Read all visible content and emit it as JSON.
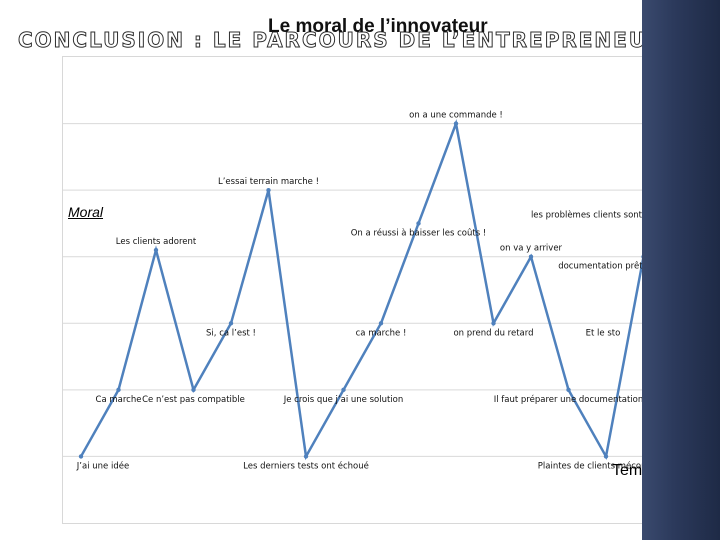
{
  "slide": {
    "title": "CONCLUSION : LE PARCOURS DE L’ENTREPRENEUR"
  },
  "chart_data": {
    "type": "line",
    "title": "Le moral de l’innovateur",
    "xlabel": "Temps",
    "ylabel": "Moral",
    "grid": true,
    "ylim": [
      0,
      7
    ],
    "line_color": "#4f81bd",
    "points": [
      {
        "label": "J’ai une idée",
        "y": 1.0
      },
      {
        "label": "Ca marche",
        "y": 2.0
      },
      {
        "label": "Les clients adorent",
        "y": 4.1
      },
      {
        "label": "Ce n’est pas compatible",
        "y": 2.0
      },
      {
        "label": "Si, ca l’est !",
        "y": 3.0
      },
      {
        "label": "L’essai terrain marche !",
        "y": 5.0
      },
      {
        "label": "Les derniers tests ont échoué",
        "y": 1.0
      },
      {
        "label": "Je crois que j’ai une solution",
        "y": 2.0
      },
      {
        "label": "ca marche !",
        "y": 3.0
      },
      {
        "label": "On a réussi à baisser les coûts !",
        "y": 4.5
      },
      {
        "label": "on a une commande !",
        "y": 6.0
      },
      {
        "label": "on prend du retard",
        "y": 3.0
      },
      {
        "label": "on va y arriver",
        "y": 4.0
      },
      {
        "label": "Il faut préparer une documentation",
        "y": 2.0
      },
      {
        "label": "Plaintes de clients mécontents",
        "y": 1.0
      },
      {
        "label": "documentation prête",
        "y": 4.0
      },
      {
        "label": "les problèmes clients sont résolus",
        "y": 4.5
      },
      {
        "label": "Et le sto",
        "y": 3.0
      }
    ]
  }
}
